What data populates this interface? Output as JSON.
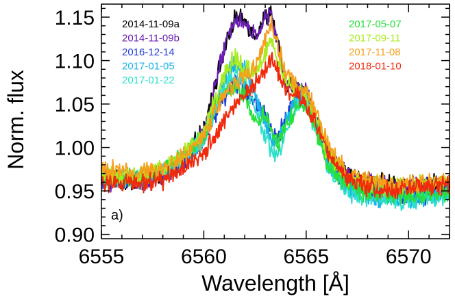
{
  "chart_data": {
    "type": "line",
    "xlabel": "Wavelength [Å]",
    "ylabel": "Norm. flux",
    "xlim": [
      6555,
      6572
    ],
    "ylim": [
      0.895,
      1.165
    ],
    "xticks": [
      6555,
      6560,
      6565,
      6570
    ],
    "xtick_labels": [
      "6555",
      "6560",
      "6565",
      "6570"
    ],
    "yticks": [
      0.9,
      0.95,
      1.0,
      1.05,
      1.1,
      1.15
    ],
    "ytick_labels": [
      "0.90",
      "0.95",
      "1.00",
      "1.05",
      "1.10",
      "1.15"
    ],
    "grid": false,
    "legend_position": "top (two columns)",
    "annotation": "a)",
    "series": [
      {
        "name": "2014-11-09a",
        "color": "#000000",
        "x": [
          6555,
          6556,
          6557,
          6558,
          6559,
          6560,
          6560.5,
          6561,
          6561.5,
          6562,
          6562.5,
          6563,
          6563.3,
          6563.6,
          6564,
          6564.5,
          6565,
          6565.5,
          6566,
          6567,
          6568,
          6569,
          6570,
          6571,
          6572
        ],
        "y": [
          0.965,
          0.96,
          0.962,
          0.97,
          0.985,
          1.02,
          1.07,
          1.11,
          1.148,
          1.145,
          1.13,
          1.15,
          1.155,
          1.12,
          1.075,
          1.07,
          1.065,
          1.03,
          0.995,
          0.968,
          0.962,
          0.958,
          0.955,
          0.958,
          0.96
        ]
      },
      {
        "name": "2014-11-09b",
        "color": "#6a1fb0",
        "x": [
          6555,
          6556,
          6557,
          6558,
          6559,
          6560,
          6560.5,
          6561,
          6561.5,
          6562,
          6562.5,
          6563,
          6563.3,
          6563.6,
          6564,
          6564.5,
          6565,
          6565.5,
          6566,
          6567,
          6568,
          6569,
          6570,
          6571,
          6572
        ],
        "y": [
          0.962,
          0.96,
          0.961,
          0.968,
          0.982,
          1.018,
          1.068,
          1.112,
          1.15,
          1.142,
          1.128,
          1.148,
          1.152,
          1.118,
          1.072,
          1.068,
          1.062,
          1.028,
          0.992,
          0.966,
          0.96,
          0.956,
          0.954,
          0.956,
          0.958
        ]
      },
      {
        "name": "2016-12-14",
        "color": "#1f3cd6",
        "x": [
          6555,
          6556,
          6557,
          6558,
          6559,
          6560,
          6560.5,
          6561,
          6561.5,
          6562,
          6562.5,
          6563,
          6563.3,
          6563.6,
          6564,
          6564.5,
          6565,
          6565.5,
          6566,
          6567,
          6568,
          6569,
          6570,
          6571,
          6572
        ],
        "y": [
          0.962,
          0.96,
          0.962,
          0.97,
          0.985,
          1.005,
          1.035,
          1.055,
          1.075,
          1.07,
          1.05,
          1.04,
          1.02,
          1.01,
          1.035,
          1.06,
          1.062,
          1.03,
          0.99,
          0.958,
          0.95,
          0.946,
          0.944,
          0.946,
          0.95
        ]
      },
      {
        "name": "2017-01-05",
        "color": "#19b4ea",
        "x": [
          6555,
          6556,
          6557,
          6558,
          6559,
          6560,
          6560.5,
          6561,
          6561.5,
          6562,
          6562.5,
          6563,
          6563.3,
          6563.6,
          6564,
          6564.5,
          6565,
          6565.5,
          6566,
          6567,
          6568,
          6569,
          6570,
          6571,
          6572
        ],
        "y": [
          0.965,
          0.962,
          0.964,
          0.972,
          0.988,
          1.01,
          1.045,
          1.078,
          1.095,
          1.088,
          1.06,
          1.03,
          1.01,
          1.005,
          1.03,
          1.055,
          1.058,
          1.025,
          0.985,
          0.952,
          0.944,
          0.942,
          0.94,
          0.942,
          0.946
        ]
      },
      {
        "name": "2017-01-22",
        "color": "#2de0cc",
        "x": [
          6555,
          6556,
          6557,
          6558,
          6559,
          6560,
          6560.5,
          6561,
          6561.5,
          6562,
          6562.5,
          6563,
          6563.3,
          6563.6,
          6564,
          6564.5,
          6565,
          6565.5,
          6566,
          6567,
          6568,
          6569,
          6570,
          6571,
          6572
        ],
        "y": [
          0.966,
          0.963,
          0.965,
          0.973,
          0.988,
          1.008,
          1.04,
          1.068,
          1.085,
          1.078,
          1.045,
          1.01,
          0.995,
          0.99,
          1.015,
          1.045,
          1.05,
          1.02,
          0.982,
          0.95,
          0.942,
          0.94,
          0.94,
          0.942,
          0.946
        ]
      },
      {
        "name": "2017-05-07",
        "color": "#27e03a",
        "x": [
          6555,
          6556,
          6557,
          6558,
          6559,
          6560,
          6560.5,
          6561,
          6561.5,
          6562,
          6562.5,
          6563,
          6563.3,
          6563.6,
          6564,
          6564.5,
          6565,
          6565.5,
          6566,
          6567,
          6568,
          6569,
          6570,
          6571,
          6572
        ],
        "y": [
          0.965,
          0.963,
          0.966,
          0.974,
          0.99,
          1.012,
          1.042,
          1.062,
          1.07,
          1.06,
          1.03,
          1.04,
          1.02,
          1.0,
          1.025,
          1.045,
          1.05,
          1.02,
          0.985,
          0.955,
          0.948,
          0.945,
          0.944,
          0.946,
          0.95
        ]
      },
      {
        "name": "2017-09-11",
        "color": "#a8ec1e",
        "x": [
          6555,
          6556,
          6557,
          6558,
          6559,
          6560,
          6560.5,
          6561,
          6561.5,
          6562,
          6562.5,
          6563,
          6563.3,
          6563.6,
          6564,
          6564.5,
          6565,
          6565.5,
          6566,
          6567,
          6568,
          6569,
          6570,
          6571,
          6572
        ],
        "y": [
          0.968,
          0.966,
          0.968,
          0.976,
          0.992,
          1.015,
          1.055,
          1.085,
          1.102,
          1.09,
          1.085,
          1.11,
          1.128,
          1.1,
          1.08,
          1.065,
          1.06,
          1.03,
          0.995,
          0.965,
          0.958,
          0.955,
          0.955,
          0.957,
          0.96
        ]
      },
      {
        "name": "2017-11-08",
        "color": "#f5a01c",
        "x": [
          6555,
          6556,
          6557,
          6558,
          6559,
          6560,
          6560.5,
          6561,
          6561.5,
          6562,
          6562.5,
          6563,
          6563.3,
          6563.6,
          6564,
          6564.5,
          6565,
          6565.5,
          6566,
          6567,
          6568,
          6569,
          6570,
          6571,
          6572
        ],
        "y": [
          0.975,
          0.972,
          0.97,
          0.975,
          0.99,
          1.012,
          1.04,
          1.062,
          1.075,
          1.08,
          1.095,
          1.125,
          1.142,
          1.12,
          1.085,
          1.07,
          1.065,
          1.04,
          1.005,
          0.972,
          0.962,
          0.958,
          0.958,
          0.96,
          0.962
        ]
      },
      {
        "name": "2018-01-10",
        "color": "#f02a0c",
        "x": [
          6555,
          6556,
          6557,
          6558,
          6559,
          6560,
          6560.5,
          6561,
          6561.5,
          6562,
          6562.5,
          6563,
          6563.3,
          6563.6,
          6564,
          6564.5,
          6565,
          6565.5,
          6566,
          6567,
          6568,
          6569,
          6570,
          6571,
          6572
        ],
        "y": [
          0.96,
          0.958,
          0.958,
          0.963,
          0.975,
          0.992,
          1.012,
          1.03,
          1.048,
          1.06,
          1.072,
          1.088,
          1.102,
          1.09,
          1.068,
          1.06,
          1.052,
          1.025,
          0.995,
          0.965,
          0.955,
          0.952,
          0.952,
          0.955,
          0.958
        ]
      }
    ]
  }
}
